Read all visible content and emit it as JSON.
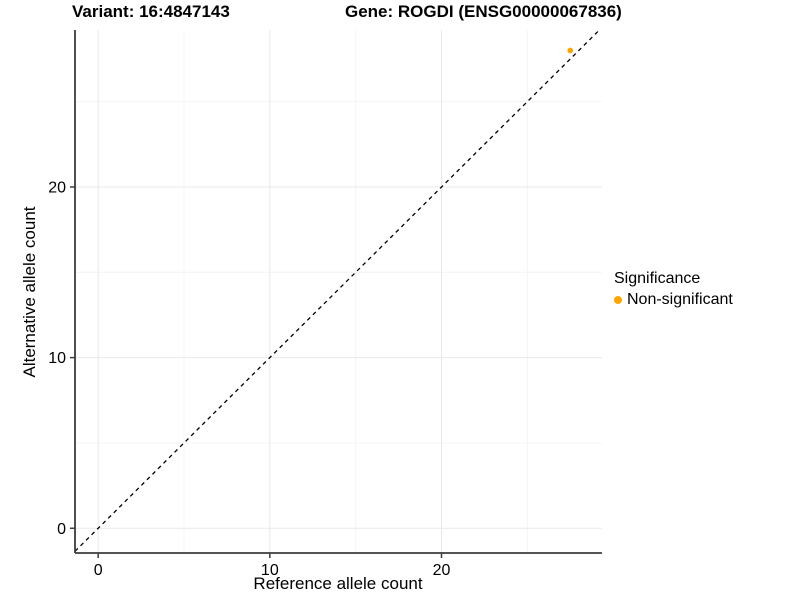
{
  "chart_data": {
    "type": "scatter",
    "title_left": "Variant: 16:4847143",
    "title_right": "Gene: ROGDI (ENSG00000067836)",
    "xlabel": "Reference allele count",
    "ylabel": "Alternative allele count",
    "xlim": [
      -1.35,
      29.35
    ],
    "ylim": [
      -1.45,
      29.2
    ],
    "x_ticks": {
      "major": [
        0,
        10,
        20
      ],
      "minor": [
        5,
        15,
        25
      ],
      "labels": [
        "0",
        "10",
        "20"
      ]
    },
    "y_ticks": {
      "major": [
        0,
        10,
        20
      ],
      "minor": [
        5,
        15,
        25
      ],
      "labels": [
        "0",
        "10",
        "20"
      ]
    },
    "grid": {
      "on": true,
      "major_color": "#e9e9e9",
      "minor_color": "#f4f4f4"
    },
    "identity_line": {
      "slope": 1,
      "intercept": 0,
      "style": "dashed",
      "color": "#000000"
    },
    "series": [
      {
        "name": "Non-significant",
        "color": "#FFA500",
        "points": [
          [
            27.5,
            28
          ]
        ]
      }
    ],
    "legend": {
      "title": "Significance",
      "position": "right",
      "items": [
        {
          "label": "Non-significant",
          "color": "#FFA500"
        }
      ]
    },
    "axis_color": "#3c3c3c",
    "tick_label_color": "#000000"
  }
}
